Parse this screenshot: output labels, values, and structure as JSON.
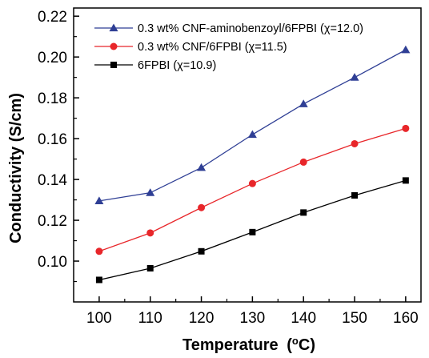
{
  "chart_data": {
    "type": "line",
    "xlabel": "Temperature",
    "xlabel_unit_prefix": "(",
    "xlabel_unit_sup": "o",
    "xlabel_unit_suffix": "C)",
    "ylabel": "Conductivity (S/cm)",
    "x": [
      100,
      110,
      120,
      130,
      140,
      150,
      160
    ],
    "xlim": [
      95,
      163
    ],
    "ylim": [
      0.08,
      0.224
    ],
    "x_ticks": [
      "100",
      "110",
      "120",
      "130",
      "140",
      "150",
      "160"
    ],
    "y_ticks": [
      "0.10",
      "0.12",
      "0.14",
      "0.16",
      "0.18",
      "0.20",
      "0.22"
    ],
    "y_tick_values": [
      0.1,
      0.12,
      0.14,
      0.16,
      0.18,
      0.2,
      0.22
    ],
    "grid": false,
    "legend_position": "top-left",
    "series": [
      {
        "name": "0.3 wt% CNF-aminobenzoyl/6FPBI",
        "chi_label": "(χ=12.0)",
        "marker": "triangle",
        "color": "#2f3f95",
        "values": [
          0.1295,
          0.1335,
          0.1458,
          0.162,
          0.177,
          0.19,
          0.2035
        ]
      },
      {
        "name": "0.3 wt% CNF/6FPBI",
        "chi_label": "(χ=11.5)",
        "marker": "circle",
        "color": "#e8262a",
        "values": [
          0.1048,
          0.1138,
          0.1262,
          0.138,
          0.1485,
          0.1575,
          0.165
        ]
      },
      {
        "name": "6FPBI",
        "chi_label": "(χ=10.9)",
        "marker": "square",
        "color": "#000000",
        "values": [
          0.0908,
          0.0965,
          0.1048,
          0.1142,
          0.1238,
          0.1322,
          0.1395
        ]
      }
    ]
  }
}
